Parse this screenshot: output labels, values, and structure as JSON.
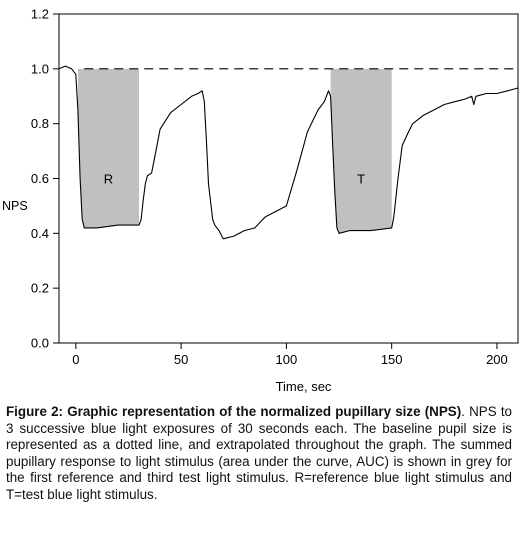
{
  "chart_data": {
    "type": "line",
    "xlabel": "Time, sec",
    "ylabel": "NPS",
    "xlim": [
      -8,
      210
    ],
    "ylim": [
      0.0,
      1.2
    ],
    "x_ticks": [
      0,
      50,
      100,
      150,
      200
    ],
    "x_tick_labels": [
      "0",
      "50",
      "100",
      "150",
      "200"
    ],
    "y_ticks": [
      0.0,
      0.2,
      0.4,
      0.6,
      0.8,
      1.0,
      1.2
    ],
    "y_tick_labels": [
      "0.0",
      "0.2",
      "0.4",
      "0.6",
      "0.8",
      "1.0",
      "1.2"
    ],
    "baseline": {
      "y": 1.0,
      "style": "dashed"
    },
    "shaded_regions": [
      {
        "label": "R",
        "x_start": 1,
        "x_end": 30,
        "color": "#c0c0c0"
      },
      {
        "label": "T",
        "x_start": 121,
        "x_end": 150,
        "color": "#c0c0c0"
      }
    ],
    "series": [
      {
        "color": "#000000",
        "x": [
          -8,
          -5,
          -2,
          0,
          1,
          2,
          3,
          4,
          10,
          20,
          30,
          31,
          32,
          33,
          34,
          36,
          38,
          40,
          45,
          50,
          55,
          58,
          60,
          61,
          62,
          63,
          65,
          66,
          67,
          68,
          70,
          75,
          80,
          85,
          90,
          95,
          100,
          105,
          110,
          115,
          118,
          120,
          121,
          122,
          123,
          124,
          125,
          130,
          140,
          150,
          151,
          152,
          153,
          154,
          155,
          158,
          160,
          165,
          170,
          175,
          180,
          185,
          188,
          189,
          190,
          195,
          200,
          205,
          210
        ],
        "y": [
          1.0,
          1.01,
          1.0,
          0.98,
          0.85,
          0.6,
          0.45,
          0.42,
          0.42,
          0.43,
          0.43,
          0.45,
          0.52,
          0.58,
          0.61,
          0.62,
          0.7,
          0.78,
          0.84,
          0.87,
          0.9,
          0.91,
          0.92,
          0.88,
          0.74,
          0.58,
          0.45,
          0.43,
          0.42,
          0.41,
          0.38,
          0.39,
          0.41,
          0.42,
          0.46,
          0.48,
          0.5,
          0.63,
          0.77,
          0.85,
          0.88,
          0.92,
          0.9,
          0.72,
          0.55,
          0.42,
          0.4,
          0.41,
          0.41,
          0.42,
          0.46,
          0.53,
          0.6,
          0.66,
          0.72,
          0.77,
          0.8,
          0.83,
          0.85,
          0.87,
          0.88,
          0.89,
          0.9,
          0.87,
          0.9,
          0.91,
          0.91,
          0.92,
          0.93
        ]
      }
    ]
  },
  "caption": {
    "title": "Figure 2: Graphic representation of the normalized pupillary size (NPS)",
    "body": ". NPS to 3 successive blue light exposures of 30 seconds each. The baseline pupil size is represented as a dotted line, and extrapolated throughout the graph. The summed pupillary response to light stimulus (area under the curve, AUC) is shown in grey for the first reference and third test light stimulus. R=reference blue light stimulus and T=test blue light stimulus."
  }
}
